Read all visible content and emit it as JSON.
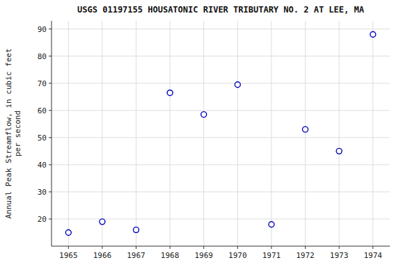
{
  "chart_data": {
    "type": "scatter",
    "title": "USGS 01197155 HOUSATONIC RIVER TRIBUTARY NO. 2 AT LEE, MA",
    "ylabel": [
      "Annual Peak Streamflow, in cubic feet",
      "per second"
    ],
    "x": [
      1965,
      1966,
      1967,
      1968,
      1969,
      1970,
      1971,
      1972,
      1973,
      1974
    ],
    "values": [
      15,
      19,
      16,
      66.5,
      58.5,
      69.5,
      18,
      53,
      45,
      88
    ],
    "xlim": [
      1964.5,
      1974.5
    ],
    "ylim": [
      10,
      93
    ],
    "xticks": [
      1965,
      1966,
      1967,
      1968,
      1969,
      1970,
      1971,
      1972,
      1973,
      1974
    ],
    "yticks": [
      20,
      30,
      40,
      50,
      60,
      70,
      80,
      90
    ],
    "color": "#0000BB",
    "marker": "circle",
    "grid": true
  }
}
